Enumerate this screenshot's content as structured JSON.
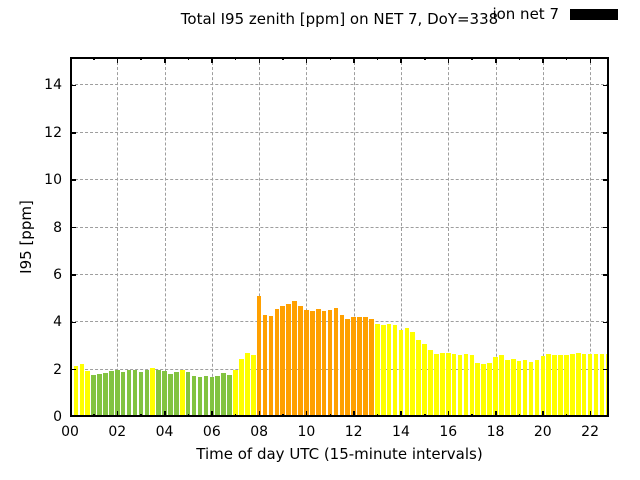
{
  "chart_data": {
    "type": "bar",
    "title": "Total I95 zenith [ppm] on NET 7, DoY=338",
    "xlabel": "Time of day UTC (15-minute intervals)",
    "ylabel": "I95 [ppm]",
    "interval_minutes": 15,
    "xlim_hours": [
      0,
      22.8
    ],
    "ylim": [
      0,
      15.2
    ],
    "x_major_ticks": [
      "00",
      "02",
      "04",
      "06",
      "08",
      "10",
      "12",
      "14",
      "16",
      "18",
      "20",
      "22"
    ],
    "x_major_tick_step_hours": 2,
    "x_minor_tick_every_hours": 1,
    "y_major_ticks": [
      "0",
      "2",
      "4",
      "6",
      "8",
      "10",
      "12",
      "14"
    ],
    "y_major_tick_step": 2,
    "grid": {
      "style": "dashed",
      "color": "#9e9e9e",
      "on": true
    },
    "legend": {
      "label": "ion net 7",
      "swatch_color": "#000000",
      "position": "top-right"
    },
    "colors": {
      "green": "#82C341",
      "yellow": "#FFFF00",
      "orange": "#FFA000"
    },
    "bars": [
      {
        "time": "00:00",
        "value": 1.87,
        "color": "yellow"
      },
      {
        "time": "00:15",
        "value": 2.14,
        "color": "yellow"
      },
      {
        "time": "00:30",
        "value": 2.24,
        "color": "yellow"
      },
      {
        "time": "00:45",
        "value": 1.96,
        "color": "yellow"
      },
      {
        "time": "01:00",
        "value": 1.79,
        "color": "green"
      },
      {
        "time": "01:15",
        "value": 1.8,
        "color": "green"
      },
      {
        "time": "01:30",
        "value": 1.84,
        "color": "green"
      },
      {
        "time": "01:45",
        "value": 1.94,
        "color": "green"
      },
      {
        "time": "02:00",
        "value": 1.97,
        "color": "green"
      },
      {
        "time": "02:15",
        "value": 1.91,
        "color": "green"
      },
      {
        "time": "02:30",
        "value": 2.0,
        "color": "green"
      },
      {
        "time": "02:45",
        "value": 1.97,
        "color": "green"
      },
      {
        "time": "03:00",
        "value": 1.88,
        "color": "green"
      },
      {
        "time": "03:15",
        "value": 1.97,
        "color": "green"
      },
      {
        "time": "03:30",
        "value": 2.05,
        "color": "yellow"
      },
      {
        "time": "03:45",
        "value": 2.0,
        "color": "green"
      },
      {
        "time": "04:00",
        "value": 1.95,
        "color": "green"
      },
      {
        "time": "04:15",
        "value": 1.81,
        "color": "green"
      },
      {
        "time": "04:30",
        "value": 1.91,
        "color": "green"
      },
      {
        "time": "04:45",
        "value": 1.97,
        "color": "yellow"
      },
      {
        "time": "05:00",
        "value": 1.91,
        "color": "green"
      },
      {
        "time": "05:15",
        "value": 1.73,
        "color": "green"
      },
      {
        "time": "05:30",
        "value": 1.7,
        "color": "green"
      },
      {
        "time": "05:45",
        "value": 1.74,
        "color": "green"
      },
      {
        "time": "06:00",
        "value": 1.69,
        "color": "green"
      },
      {
        "time": "06:15",
        "value": 1.75,
        "color": "green"
      },
      {
        "time": "06:30",
        "value": 1.87,
        "color": "green"
      },
      {
        "time": "06:45",
        "value": 1.78,
        "color": "green"
      },
      {
        "time": "07:00",
        "value": 1.98,
        "color": "yellow"
      },
      {
        "time": "07:15",
        "value": 2.45,
        "color": "yellow"
      },
      {
        "time": "07:30",
        "value": 2.69,
        "color": "yellow"
      },
      {
        "time": "07:45",
        "value": 2.62,
        "color": "yellow"
      },
      {
        "time": "08:00",
        "value": 5.1,
        "color": "orange"
      },
      {
        "time": "08:15",
        "value": 4.3,
        "color": "orange"
      },
      {
        "time": "08:30",
        "value": 4.27,
        "color": "orange"
      },
      {
        "time": "08:45",
        "value": 4.56,
        "color": "orange"
      },
      {
        "time": "09:00",
        "value": 4.7,
        "color": "orange"
      },
      {
        "time": "09:15",
        "value": 4.77,
        "color": "orange"
      },
      {
        "time": "09:30",
        "value": 4.9,
        "color": "orange"
      },
      {
        "time": "09:45",
        "value": 4.68,
        "color": "orange"
      },
      {
        "time": "10:00",
        "value": 4.52,
        "color": "orange"
      },
      {
        "time": "10:15",
        "value": 4.49,
        "color": "orange"
      },
      {
        "time": "10:30",
        "value": 4.54,
        "color": "orange"
      },
      {
        "time": "10:45",
        "value": 4.47,
        "color": "orange"
      },
      {
        "time": "11:00",
        "value": 4.5,
        "color": "orange"
      },
      {
        "time": "11:15",
        "value": 4.62,
        "color": "orange"
      },
      {
        "time": "11:30",
        "value": 4.3,
        "color": "orange"
      },
      {
        "time": "11:45",
        "value": 4.13,
        "color": "orange"
      },
      {
        "time": "12:00",
        "value": 4.21,
        "color": "orange"
      },
      {
        "time": "12:15",
        "value": 4.21,
        "color": "orange"
      },
      {
        "time": "12:30",
        "value": 4.21,
        "color": "orange"
      },
      {
        "time": "12:45",
        "value": 4.15,
        "color": "orange"
      },
      {
        "time": "13:00",
        "value": 3.92,
        "color": "yellow"
      },
      {
        "time": "13:15",
        "value": 3.9,
        "color": "yellow"
      },
      {
        "time": "13:30",
        "value": 3.92,
        "color": "yellow"
      },
      {
        "time": "13:45",
        "value": 3.9,
        "color": "yellow"
      },
      {
        "time": "14:00",
        "value": 3.67,
        "color": "yellow"
      },
      {
        "time": "14:15",
        "value": 3.74,
        "color": "yellow"
      },
      {
        "time": "14:30",
        "value": 3.6,
        "color": "yellow"
      },
      {
        "time": "14:45",
        "value": 3.25,
        "color": "yellow"
      },
      {
        "time": "15:00",
        "value": 3.1,
        "color": "yellow"
      },
      {
        "time": "15:15",
        "value": 2.85,
        "color": "yellow"
      },
      {
        "time": "15:30",
        "value": 2.65,
        "color": "yellow"
      },
      {
        "time": "15:45",
        "value": 2.7,
        "color": "yellow"
      },
      {
        "time": "16:00",
        "value": 2.72,
        "color": "yellow"
      },
      {
        "time": "16:15",
        "value": 2.68,
        "color": "yellow"
      },
      {
        "time": "16:30",
        "value": 2.6,
        "color": "yellow"
      },
      {
        "time": "16:45",
        "value": 2.64,
        "color": "yellow"
      },
      {
        "time": "17:00",
        "value": 2.6,
        "color": "yellow"
      },
      {
        "time": "17:15",
        "value": 2.3,
        "color": "yellow"
      },
      {
        "time": "17:30",
        "value": 2.22,
        "color": "yellow"
      },
      {
        "time": "17:45",
        "value": 2.28,
        "color": "yellow"
      },
      {
        "time": "18:00",
        "value": 2.55,
        "color": "yellow"
      },
      {
        "time": "18:15",
        "value": 2.6,
        "color": "yellow"
      },
      {
        "time": "18:30",
        "value": 2.39,
        "color": "yellow"
      },
      {
        "time": "18:45",
        "value": 2.46,
        "color": "yellow"
      },
      {
        "time": "19:00",
        "value": 2.36,
        "color": "yellow"
      },
      {
        "time": "19:15",
        "value": 2.42,
        "color": "yellow"
      },
      {
        "time": "19:30",
        "value": 2.34,
        "color": "yellow"
      },
      {
        "time": "19:45",
        "value": 2.39,
        "color": "yellow"
      },
      {
        "time": "20:00",
        "value": 2.57,
        "color": "yellow"
      },
      {
        "time": "20:15",
        "value": 2.64,
        "color": "yellow"
      },
      {
        "time": "20:30",
        "value": 2.63,
        "color": "yellow"
      },
      {
        "time": "20:45",
        "value": 2.6,
        "color": "yellow"
      },
      {
        "time": "21:00",
        "value": 2.63,
        "color": "yellow"
      },
      {
        "time": "21:15",
        "value": 2.66,
        "color": "yellow"
      },
      {
        "time": "21:30",
        "value": 2.7,
        "color": "yellow"
      },
      {
        "time": "21:45",
        "value": 2.68,
        "color": "yellow"
      },
      {
        "time": "22:00",
        "value": 2.66,
        "color": "yellow"
      },
      {
        "time": "22:15",
        "value": 2.66,
        "color": "yellow"
      },
      {
        "time": "22:30",
        "value": 2.68,
        "color": "yellow"
      },
      {
        "time": "22:45",
        "value": 2.66,
        "color": "yellow"
      }
    ]
  }
}
